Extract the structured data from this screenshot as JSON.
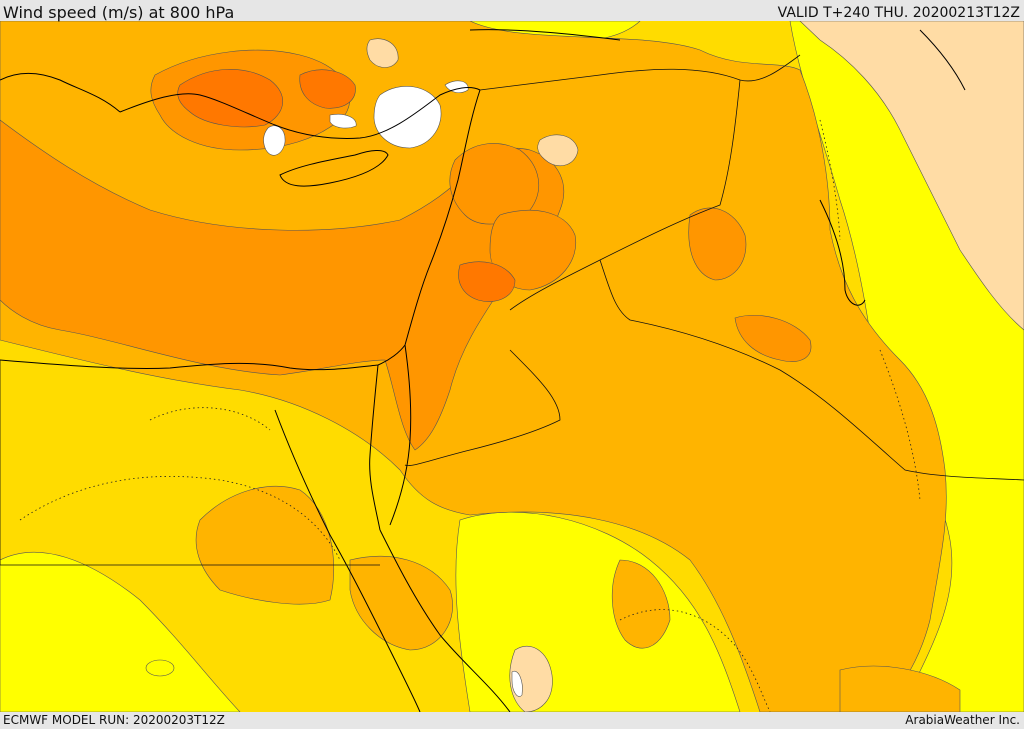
{
  "header": {
    "title": "Wind speed (m/s) at 800 hPa",
    "valid": "VALID T+240 THU. 20200213T12Z"
  },
  "footer": {
    "model_run": "ECMWF MODEL RUN: 20200203T12Z",
    "credit": "ArabiaWeather Inc."
  },
  "map": {
    "variable": "wind speed",
    "level": "800 hPa",
    "colors": {
      "calm_white": "#ffffff",
      "light_tan": "#ffdca5",
      "yellow": "#ffff00",
      "gold": "#ffdc00",
      "light_orange": "#ffb400",
      "orange": "#ff9600",
      "dark_orange": "#ff7800",
      "coastline": "#000000"
    }
  }
}
